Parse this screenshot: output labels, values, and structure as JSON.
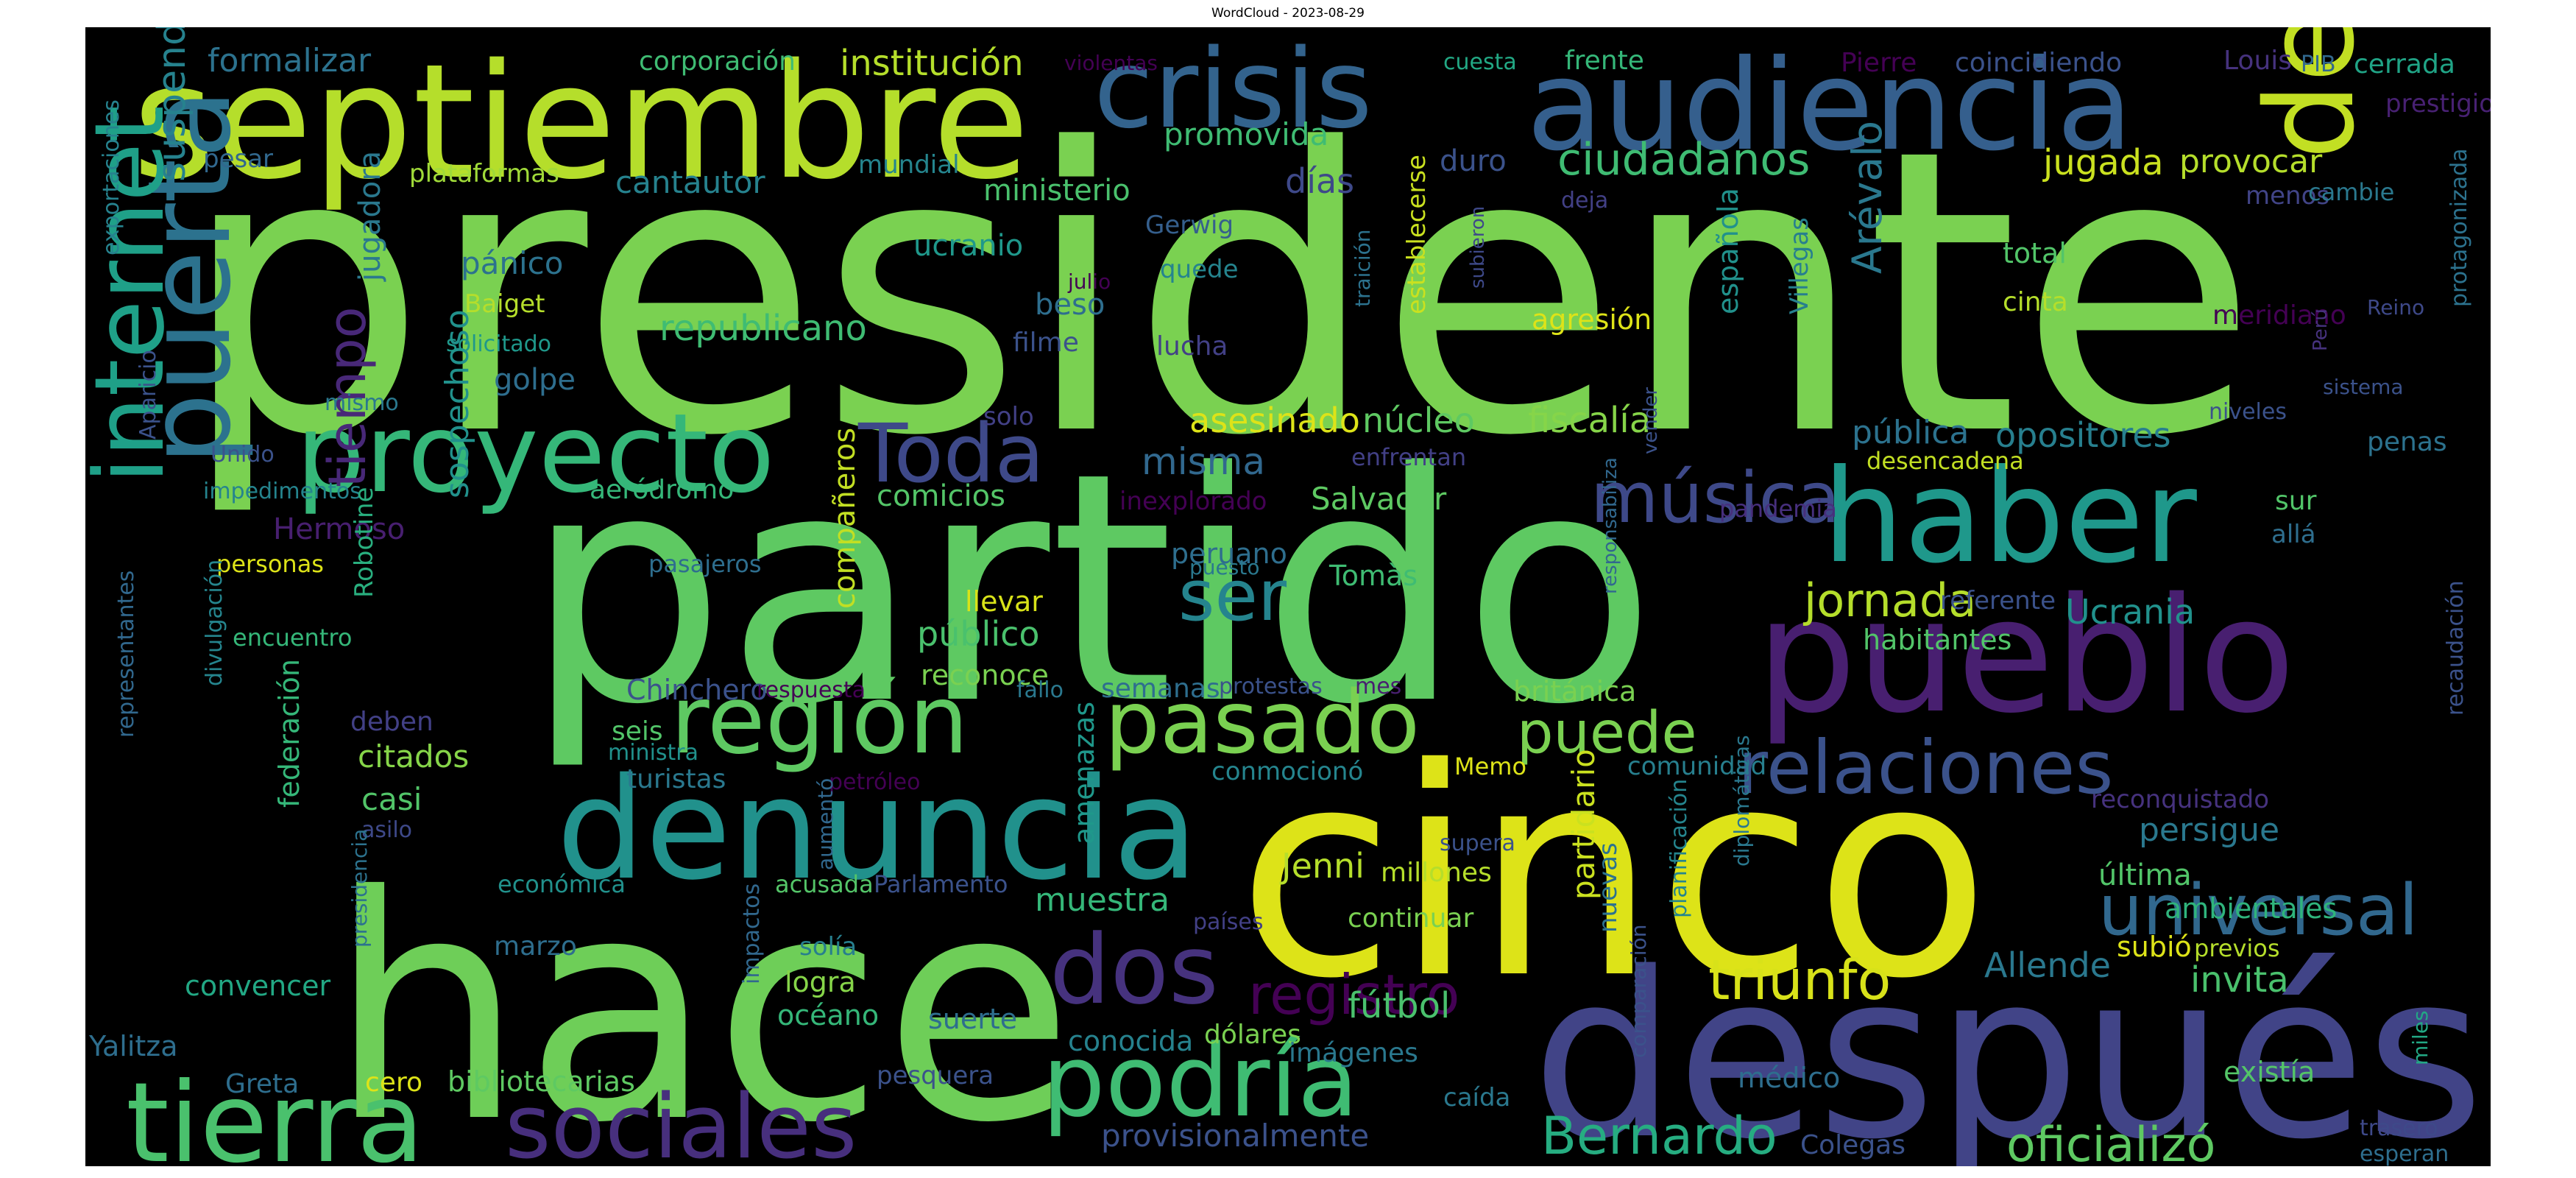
{
  "title": "WordCloud - 2023-08-29",
  "background_color": "#000000",
  "palette": "viridis",
  "words": [
    {
      "text": "presidente",
      "color": "#7ad151"
    },
    {
      "text": "partido",
      "color": "#5ec962"
    },
    {
      "text": "cinco",
      "color": "#dde318"
    },
    {
      "text": "hace",
      "color": "#6ece58"
    },
    {
      "text": "después",
      "color": "#414487"
    },
    {
      "text": "septiembre",
      "color": "#b5de2b"
    },
    {
      "text": "audiencia",
      "color": "#355f8d"
    },
    {
      "text": "crisis",
      "color": "#33638d"
    },
    {
      "text": "pueblo",
      "color": "#481f70"
    },
    {
      "text": "detenido",
      "color": "#c2df23"
    },
    {
      "text": "haber",
      "color": "#1f988b"
    },
    {
      "text": "denuncia",
      "color": "#21918c"
    },
    {
      "text": "proyecto",
      "color": "#35b779"
    },
    {
      "text": "región",
      "color": "#5ec962"
    },
    {
      "text": "pasado",
      "color": "#7ad151"
    },
    {
      "text": "tierra",
      "color": "#4ac16d"
    },
    {
      "text": "sociales",
      "color": "#472f7d"
    },
    {
      "text": "podría",
      "color": "#3fbc73"
    },
    {
      "text": "puerta",
      "color": "#2c728e"
    },
    {
      "text": "internet",
      "color": "#1fa088"
    },
    {
      "text": "relaciones",
      "color": "#3b528b"
    },
    {
      "text": "universal",
      "color": "#31688e"
    },
    {
      "text": "dos",
      "color": "#46327e"
    },
    {
      "text": "Toda",
      "color": "#3e4989"
    },
    {
      "text": "música",
      "color": "#3e4989"
    },
    {
      "text": "registro",
      "color": "#440154"
    },
    {
      "text": "tiempo",
      "color": "#482878"
    },
    {
      "text": "Bernardo",
      "color": "#26ad81"
    },
    {
      "text": "oficializó",
      "color": "#5ec962"
    },
    {
      "text": "triunfo",
      "color": "#d8e219"
    },
    {
      "text": "puede",
      "color": "#7ad151"
    },
    {
      "text": "jornada",
      "color": "#b5de2b"
    },
    {
      "text": "ser",
      "color": "#25848e"
    },
    {
      "text": "Arévalo",
      "color": "#2a788e"
    },
    {
      "text": "ciudadanos",
      "color": "#3fbc73"
    },
    {
      "text": "suspendió",
      "color": "#26828e"
    },
    {
      "text": "sospechoso",
      "color": "#21918c"
    },
    {
      "text": "institución",
      "color": "#b5de2b"
    },
    {
      "text": "formalizar",
      "color": "#2c728e"
    },
    {
      "text": "corporación",
      "color": "#3fbc73"
    },
    {
      "text": "violentas",
      "color": "#440154"
    },
    {
      "text": "cuesta",
      "color": "#22a884"
    },
    {
      "text": "frente",
      "color": "#35b779"
    },
    {
      "text": "Pierre",
      "color": "#440154"
    },
    {
      "text": "coincidiendo",
      "color": "#3b528b"
    },
    {
      "text": "Louis",
      "color": "#46327e"
    },
    {
      "text": "PIB",
      "color": "#31688e"
    },
    {
      "text": "cerrada",
      "color": "#20a486"
    },
    {
      "text": "prestigio",
      "color": "#482173"
    },
    {
      "text": "promovida",
      "color": "#3fbc73"
    },
    {
      "text": "ministerio",
      "color": "#4ac16d"
    },
    {
      "text": "cantautor",
      "color": "#26828e"
    },
    {
      "text": "plataformas",
      "color": "#a0da39"
    },
    {
      "text": "mundial",
      "color": "#25858e"
    },
    {
      "text": "pesar",
      "color": "#31688e"
    },
    {
      "text": "días",
      "color": "#3e4989"
    },
    {
      "text": "duro",
      "color": "#3b528b"
    },
    {
      "text": "jugada",
      "color": "#cae11f"
    },
    {
      "text": "provocar",
      "color": "#b5de2b"
    },
    {
      "text": "menos",
      "color": "#414487"
    },
    {
      "text": "cambie",
      "color": "#2a788e"
    },
    {
      "text": "protagonizada",
      "color": "#2c728e"
    },
    {
      "text": "exportaciones",
      "color": "#26828e"
    },
    {
      "text": "jugadora",
      "color": "#2a788e"
    },
    {
      "text": "pánico",
      "color": "#2c728e"
    },
    {
      "text": "ucranio",
      "color": "#1f988b"
    },
    {
      "text": "Gerwig",
      "color": "#355f8d"
    },
    {
      "text": "quede",
      "color": "#25848e"
    },
    {
      "text": "establecerse",
      "color": "#cae11f"
    },
    {
      "text": "subieron",
      "color": "#3e4989"
    },
    {
      "text": "deja",
      "color": "#424086"
    },
    {
      "text": "española",
      "color": "#21918c"
    },
    {
      "text": "Villegas",
      "color": "#277f8e"
    },
    {
      "text": "total",
      "color": "#52c569"
    },
    {
      "text": "cinta",
      "color": "#b5de2b"
    },
    {
      "text": "Baiget",
      "color": "#b5de2b"
    },
    {
      "text": "republicano",
      "color": "#3fbc73"
    },
    {
      "text": "beso",
      "color": "#2e6e8e"
    },
    {
      "text": "julio",
      "color": "#440154"
    },
    {
      "text": "filme",
      "color": "#3b528b"
    },
    {
      "text": "lucha",
      "color": "#424086"
    },
    {
      "text": "traición",
      "color": "#2c728e"
    },
    {
      "text": "agresión",
      "color": "#dde318"
    },
    {
      "text": "meridiano",
      "color": "#440154"
    },
    {
      "text": "Reino",
      "color": "#3e4989"
    },
    {
      "text": "solicitado",
      "color": "#1f988b"
    },
    {
      "text": "golpe",
      "color": "#2e6e8e"
    },
    {
      "text": "mismo",
      "color": "#2a788e"
    },
    {
      "text": "Aparicio",
      "color": "#3b528b"
    },
    {
      "text": "Unido",
      "color": "#3b528b"
    },
    {
      "text": "impedimentos",
      "color": "#25848e"
    },
    {
      "text": "asesinado",
      "color": "#dde318"
    },
    {
      "text": "núcleo",
      "color": "#5ec962"
    },
    {
      "text": "fiscalía",
      "color": "#86d549"
    },
    {
      "text": "pública",
      "color": "#2c728e"
    },
    {
      "text": "niveles",
      "color": "#3b528b"
    },
    {
      "text": "sistema",
      "color": "#3b528b"
    },
    {
      "text": "solo",
      "color": "#424086"
    },
    {
      "text": "misma",
      "color": "#31688e"
    },
    {
      "text": "enfrentan",
      "color": "#424086"
    },
    {
      "text": "vender",
      "color": "#3b528b"
    },
    {
      "text": "desencadena",
      "color": "#c2df23"
    },
    {
      "text": "opositores",
      "color": "#277f8e"
    },
    {
      "text": "Perú",
      "color": "#46327e"
    },
    {
      "text": "penas",
      "color": "#2c728e"
    },
    {
      "text": "comicios",
      "color": "#54c568"
    },
    {
      "text": "inexplorado",
      "color": "#440154"
    },
    {
      "text": "Salvador",
      "color": "#5ec962"
    },
    {
      "text": "responsabiliza",
      "color": "#31688e"
    },
    {
      "text": "pandemia",
      "color": "#472f7d"
    },
    {
      "text": "sur",
      "color": "#52c569"
    },
    {
      "text": "allá",
      "color": "#2e6e8e"
    },
    {
      "text": "Hermoso",
      "color": "#481f70"
    },
    {
      "text": "personas",
      "color": "#dde318"
    },
    {
      "text": "Robotine",
      "color": "#29af7f"
    },
    {
      "text": "aeródromo",
      "color": "#35b779"
    },
    {
      "text": "compañeros",
      "color": "#c2df23"
    },
    {
      "text": "peruano",
      "color": "#2e6e8e"
    },
    {
      "text": "Tomàs",
      "color": "#3fbc73"
    },
    {
      "text": "pasajeros",
      "color": "#2e6e8e"
    },
    {
      "text": "puesto",
      "color": "#2a788e"
    },
    {
      "text": "llevar",
      "color": "#d8e219"
    },
    {
      "text": "referente",
      "color": "#3b528b"
    },
    {
      "text": "Ucrania",
      "color": "#21918c"
    },
    {
      "text": "habitantes",
      "color": "#52c569"
    },
    {
      "text": "encuentro",
      "color": "#35b779"
    },
    {
      "text": "público",
      "color": "#4ac16d"
    },
    {
      "text": "reconoce",
      "color": "#7ad151"
    },
    {
      "text": "divulgación",
      "color": "#25858e"
    },
    {
      "text": "representantes",
      "color": "#31688e"
    },
    {
      "text": "Chinchero",
      "color": "#3b528b"
    },
    {
      "text": "respuesta",
      "color": "#440154"
    },
    {
      "text": "fallo",
      "color": "#2a788e"
    },
    {
      "text": "semanas",
      "color": "#2e6e8e"
    },
    {
      "text": "protestas",
      "color": "#3b528b"
    },
    {
      "text": "mes",
      "color": "#481f70"
    },
    {
      "text": "británica",
      "color": "#7ad151"
    },
    {
      "text": "recaudación",
      "color": "#3b528b"
    },
    {
      "text": "deben",
      "color": "#424086"
    },
    {
      "text": "federación",
      "color": "#35b779"
    },
    {
      "text": "seis",
      "color": "#52c569"
    },
    {
      "text": "ministra",
      "color": "#21918c"
    },
    {
      "text": "citados",
      "color": "#86d549"
    },
    {
      "text": "turistas",
      "color": "#2a788e"
    },
    {
      "text": "conmocionó",
      "color": "#25858e"
    },
    {
      "text": "Memo",
      "color": "#dde318"
    },
    {
      "text": "partidario",
      "color": "#cae11f"
    },
    {
      "text": "comunidad",
      "color": "#277f8e"
    },
    {
      "text": "reconquistado",
      "color": "#46327e"
    },
    {
      "text": "casi",
      "color": "#52c569"
    },
    {
      "text": "asilo",
      "color": "#3e4989"
    },
    {
      "text": "petróleo",
      "color": "#440154"
    },
    {
      "text": "amenazas",
      "color": "#1f988b"
    },
    {
      "text": "aumentó",
      "color": "#31688e"
    },
    {
      "text": "diplomáticas",
      "color": "#2a788e"
    },
    {
      "text": "persigue",
      "color": "#2a788e"
    },
    {
      "text": "última",
      "color": "#52c569"
    },
    {
      "text": "millones",
      "color": "#b5de2b"
    },
    {
      "text": "supera",
      "color": "#3b528b"
    },
    {
      "text": "planificación",
      "color": "#25858e"
    },
    {
      "text": "nuevas",
      "color": "#2c728e"
    },
    {
      "text": "ambientales",
      "color": "#2fb47c"
    },
    {
      "text": "subió",
      "color": "#dde318"
    },
    {
      "text": "previos",
      "color": "#b5de2b"
    },
    {
      "text": "Jenni",
      "color": "#b5de2b"
    },
    {
      "text": "continuar",
      "color": "#7ad151"
    },
    {
      "text": "económica",
      "color": "#21918c"
    },
    {
      "text": "acusada",
      "color": "#54c568"
    },
    {
      "text": "Parlamento",
      "color": "#3b528b"
    },
    {
      "text": "presidencia",
      "color": "#2c728e"
    },
    {
      "text": "muestra",
      "color": "#35b779"
    },
    {
      "text": "países",
      "color": "#424086"
    },
    {
      "text": "impactos",
      "color": "#31688e"
    },
    {
      "text": "comparación",
      "color": "#3b528b"
    },
    {
      "text": "marzo",
      "color": "#2e6e8e"
    },
    {
      "text": "solía",
      "color": "#277f8e"
    },
    {
      "text": "Allende",
      "color": "#2a788e"
    },
    {
      "text": "invita",
      "color": "#4ac16d"
    },
    {
      "text": "logra",
      "color": "#86d549"
    },
    {
      "text": "convencer",
      "color": "#22a884"
    },
    {
      "text": "fútbol",
      "color": "#4ac16d"
    },
    {
      "text": "océano",
      "color": "#35b779"
    },
    {
      "text": "suerte",
      "color": "#2e6e8e"
    },
    {
      "text": "dólares",
      "color": "#7ad151"
    },
    {
      "text": "imágenes",
      "color": "#2a788e"
    },
    {
      "text": "Yalitza",
      "color": "#2e6e8e"
    },
    {
      "text": "conocida",
      "color": "#26828e"
    },
    {
      "text": "médico",
      "color": "#2e6e8e"
    },
    {
      "text": "miles",
      "color": "#22a884"
    },
    {
      "text": "existía",
      "color": "#54c568"
    },
    {
      "text": "Greta",
      "color": "#2e6e8e"
    },
    {
      "text": "cero",
      "color": "#dde318"
    },
    {
      "text": "bibliotecarias",
      "color": "#5ec962"
    },
    {
      "text": "pesquera",
      "color": "#3b528b"
    },
    {
      "text": "caída",
      "color": "#2a788e"
    },
    {
      "text": "provisionalmente",
      "color": "#3b528b"
    },
    {
      "text": "Colegas",
      "color": "#3b528b"
    },
    {
      "text": "trasero",
      "color": "#3e4989"
    },
    {
      "text": "esperan",
      "color": "#2e6e8e"
    }
  ]
}
